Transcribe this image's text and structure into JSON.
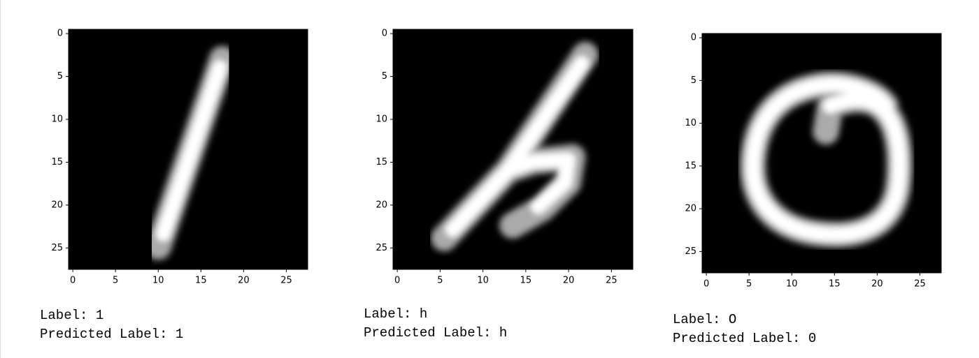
{
  "chart_data": [
    {
      "type": "image",
      "xlim": [
        -0.5,
        27.5
      ],
      "ylim": [
        27.5,
        -0.5
      ],
      "xticks": [
        0,
        5,
        10,
        15,
        20,
        25
      ],
      "yticks": [
        0,
        5,
        10,
        15,
        20,
        25
      ],
      "annotations": [
        "Label: 1",
        "Predicted Label: 1"
      ]
    },
    {
      "type": "image",
      "xlim": [
        -0.5,
        27.5
      ],
      "ylim": [
        27.5,
        -0.5
      ],
      "xticks": [
        0,
        5,
        10,
        15,
        20,
        25
      ],
      "yticks": [
        0,
        5,
        10,
        15,
        20,
        25
      ],
      "annotations": [
        "Label: h",
        "Predicted Label: h"
      ]
    },
    {
      "type": "image",
      "xlim": [
        -0.5,
        27.5
      ],
      "ylim": [
        27.5,
        -0.5
      ],
      "xticks": [
        0,
        5,
        10,
        15,
        20,
        25
      ],
      "yticks": [
        0,
        5,
        10,
        15,
        20,
        25
      ],
      "annotations": [
        "Label: O",
        "Predicted Label: 0"
      ]
    }
  ]
}
